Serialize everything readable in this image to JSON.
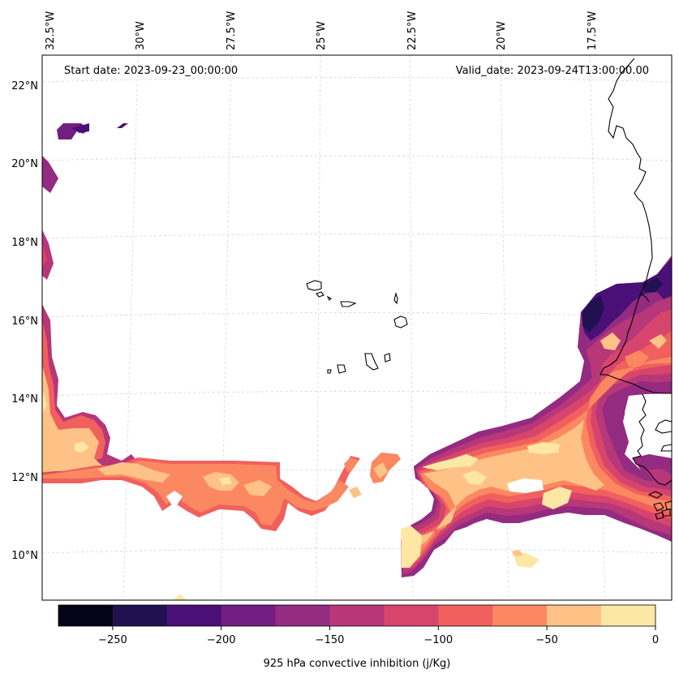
{
  "header": {
    "start_date": "Start date: 2023-09-23_00:00:00",
    "valid_date": "Valid_date: 2023-09-24T13:00:00.00"
  },
  "map": {
    "longitude_labels": [
      "32.5°W",
      "30°W",
      "27.5°W",
      "25°W",
      "22.5°W",
      "20°W",
      "17.5°W"
    ],
    "latitude_labels": [
      "22°N",
      "20°N",
      "18°N",
      "16°N",
      "14°N",
      "12°N",
      "10°N"
    ]
  },
  "colorbar": {
    "label": "925 hPa convective inhibition (j/Kg)",
    "tick_labels": [
      "−250",
      "−200",
      "−150",
      "−100",
      "−50",
      "0"
    ],
    "range": [
      -275,
      0
    ],
    "levels": [
      -275,
      -250,
      -225,
      -200,
      -175,
      -150,
      -125,
      -100,
      -75,
      -50,
      -25,
      0
    ],
    "colors": [
      "#050416",
      "#221150",
      "#4a1078",
      "#721f81",
      "#932b80",
      "#b73779",
      "#d8456c",
      "#f1605d",
      "#fb8861",
      "#fec287",
      "#fde7a5"
    ]
  }
}
